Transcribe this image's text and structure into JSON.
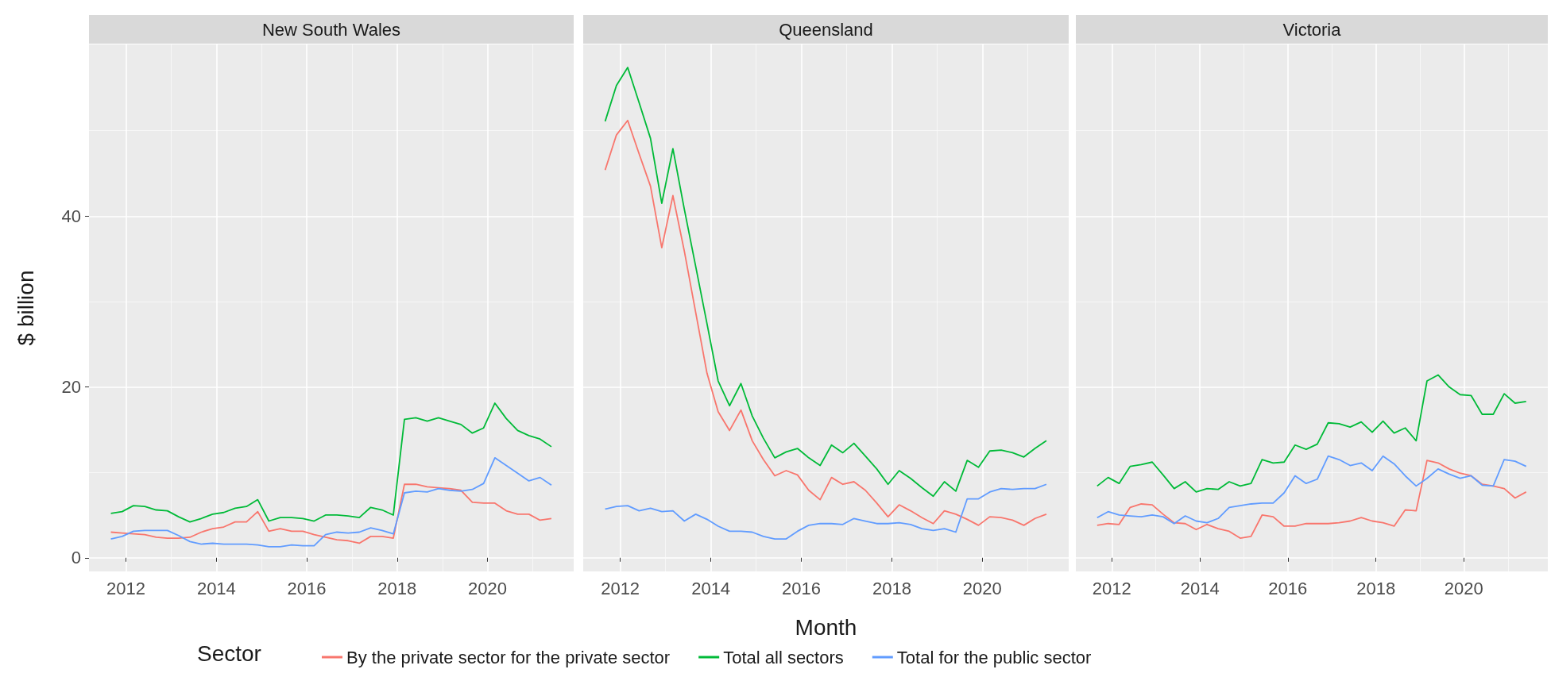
{
  "chart_data": [
    {
      "type": "line",
      "title": "New South Wales",
      "ylabel": "$ billion",
      "grid": true,
      "legend": false,
      "x": [
        "2011-09",
        "2011-12",
        "2012-03",
        "2012-06",
        "2012-09",
        "2012-12",
        "2013-03",
        "2013-06",
        "2013-09",
        "2013-12",
        "2014-03",
        "2014-06",
        "2014-09",
        "2014-12",
        "2015-03",
        "2015-06",
        "2015-09",
        "2015-12",
        "2016-03",
        "2016-06",
        "2016-09",
        "2016-12",
        "2017-03",
        "2017-06",
        "2017-09",
        "2017-12",
        "2018-03",
        "2018-06",
        "2018-09",
        "2018-12",
        "2019-03",
        "2019-06",
        "2019-09",
        "2019-12",
        "2020-03",
        "2020-06",
        "2020-09",
        "2020-12",
        "2021-03",
        "2021-06"
      ],
      "xlim": [
        "2011-03-08",
        "2021-11-28"
      ],
      "xticks": [
        "2012",
        "2014",
        "2016",
        "2018",
        "2020"
      ],
      "ylim": [
        -1.6,
        60.1
      ],
      "yticks": [
        0,
        20,
        40
      ],
      "series": [
        {
          "color": "#f8766d",
          "values": [
            3.0,
            2.9,
            2.8,
            2.7,
            2.4,
            2.3,
            2.3,
            2.4,
            3.0,
            3.4,
            3.6,
            4.2,
            4.2,
            5.4,
            3.1,
            3.4,
            3.1,
            3.1,
            2.7,
            2.4,
            2.1,
            2.0,
            1.7,
            2.5,
            2.5,
            2.3,
            8.6,
            8.6,
            8.3,
            8.2,
            8.1,
            7.9,
            6.5,
            6.4,
            6.4,
            5.5,
            5.1,
            5.1,
            4.4,
            4.6
          ]
        },
        {
          "color": "#00ba38",
          "values": [
            5.2,
            5.4,
            6.1,
            6.0,
            5.6,
            5.5,
            4.8,
            4.2,
            4.6,
            5.1,
            5.3,
            5.8,
            6.0,
            6.8,
            4.3,
            4.7,
            4.7,
            4.6,
            4.3,
            5.0,
            5.0,
            4.9,
            4.7,
            5.9,
            5.6,
            5.0,
            16.2,
            16.4,
            16.0,
            16.4,
            16.0,
            15.6,
            14.6,
            15.2,
            18.1,
            16.3,
            14.9,
            14.3,
            13.9,
            13.0
          ]
        },
        {
          "color": "#619cff",
          "values": [
            2.2,
            2.5,
            3.1,
            3.2,
            3.2,
            3.2,
            2.6,
            1.9,
            1.6,
            1.7,
            1.6,
            1.6,
            1.6,
            1.5,
            1.3,
            1.3,
            1.5,
            1.4,
            1.4,
            2.7,
            3.0,
            2.9,
            3.0,
            3.5,
            3.2,
            2.8,
            7.6,
            7.8,
            7.7,
            8.1,
            7.9,
            7.8,
            8.0,
            8.7,
            11.7,
            10.8,
            9.9,
            9.0,
            9.4,
            8.5
          ]
        }
      ]
    },
    {
      "type": "line",
      "title": "Queensland",
      "xlabel": "Month",
      "legend_title": "Sector",
      "tick_labels": "x",
      "grid": true,
      "legend": "bottom",
      "x": [
        "2011-09",
        "2011-12",
        "2012-03",
        "2012-06",
        "2012-09",
        "2012-12",
        "2013-03",
        "2013-06",
        "2013-09",
        "2013-12",
        "2014-03",
        "2014-06",
        "2014-09",
        "2014-12",
        "2015-03",
        "2015-06",
        "2015-09",
        "2015-12",
        "2016-03",
        "2016-06",
        "2016-09",
        "2016-12",
        "2017-03",
        "2017-06",
        "2017-09",
        "2017-12",
        "2018-03",
        "2018-06",
        "2018-09",
        "2018-12",
        "2019-03",
        "2019-06",
        "2019-09",
        "2019-12",
        "2020-03",
        "2020-06",
        "2020-09",
        "2020-12",
        "2021-03",
        "2021-06"
      ],
      "xlim": [
        "2011-03-08",
        "2021-11-28"
      ],
      "xticks": [
        "2012",
        "2014",
        "2016",
        "2018",
        "2020"
      ],
      "ylim": [
        -1.6,
        60.1
      ],
      "yticks": [
        0,
        20,
        40
      ],
      "series": [
        {
          "name": "By the private sector for the private sector",
          "color": "#f8766d",
          "values": [
            45.4,
            49.5,
            51.2,
            47.3,
            43.5,
            36.3,
            42.4,
            35.9,
            28.7,
            21.6,
            17.1,
            14.9,
            17.3,
            13.7,
            11.5,
            9.6,
            10.2,
            9.7,
            7.9,
            6.8,
            9.4,
            8.6,
            8.9,
            7.9,
            6.4,
            4.8,
            6.2,
            5.5,
            4.7,
            4.0,
            5.5,
            5.1,
            4.5,
            3.8,
            4.8,
            4.7,
            4.4,
            3.8,
            4.6,
            5.1
          ]
        },
        {
          "name": "Total all sectors",
          "color": "#00ba38",
          "values": [
            51.1,
            55.3,
            57.4,
            53.3,
            49.1,
            41.5,
            47.9,
            40.8,
            34.1,
            27.4,
            20.7,
            17.8,
            20.4,
            16.6,
            14.0,
            11.7,
            12.4,
            12.8,
            11.7,
            10.8,
            13.2,
            12.3,
            13.4,
            11.9,
            10.4,
            8.6,
            10.2,
            9.3,
            8.2,
            7.2,
            8.9,
            7.8,
            11.4,
            10.6,
            12.5,
            12.6,
            12.3,
            11.8,
            12.8,
            13.7
          ]
        },
        {
          "name": "Total for the public sector",
          "color": "#619cff",
          "values": [
            5.7,
            6.0,
            6.1,
            5.5,
            5.8,
            5.4,
            5.5,
            4.3,
            5.1,
            4.5,
            3.7,
            3.1,
            3.1,
            3.0,
            2.5,
            2.2,
            2.2,
            3.1,
            3.8,
            4.0,
            4.0,
            3.9,
            4.6,
            4.3,
            4.0,
            4.0,
            4.1,
            3.9,
            3.4,
            3.2,
            3.4,
            3.0,
            6.9,
            6.9,
            7.7,
            8.1,
            8.0,
            8.1,
            8.1,
            8.6
          ]
        }
      ]
    },
    {
      "type": "line",
      "title": "Victoria",
      "tick_labels": "x",
      "grid": true,
      "legend": false,
      "x": [
        "2011-09",
        "2011-12",
        "2012-03",
        "2012-06",
        "2012-09",
        "2012-12",
        "2013-03",
        "2013-06",
        "2013-09",
        "2013-12",
        "2014-03",
        "2014-06",
        "2014-09",
        "2014-12",
        "2015-03",
        "2015-06",
        "2015-09",
        "2015-12",
        "2016-03",
        "2016-06",
        "2016-09",
        "2016-12",
        "2017-03",
        "2017-06",
        "2017-09",
        "2017-12",
        "2018-03",
        "2018-06",
        "2018-09",
        "2018-12",
        "2019-03",
        "2019-06",
        "2019-09",
        "2019-12",
        "2020-03",
        "2020-06",
        "2020-09",
        "2020-12",
        "2021-03",
        "2021-06"
      ],
      "xlim": [
        "2011-03-08",
        "2021-11-28"
      ],
      "xticks": [
        "2012",
        "2014",
        "2016",
        "2018",
        "2020"
      ],
      "ylim": [
        -1.6,
        60.1
      ],
      "yticks": [
        0,
        20,
        40
      ],
      "series": [
        {
          "color": "#f8766d",
          "values": [
            3.8,
            4.0,
            3.9,
            5.9,
            6.3,
            6.2,
            5.1,
            4.1,
            4.0,
            3.3,
            3.9,
            3.4,
            3.1,
            2.3,
            2.5,
            5.0,
            4.8,
            3.7,
            3.7,
            4.0,
            4.0,
            4.0,
            4.1,
            4.3,
            4.7,
            4.3,
            4.1,
            3.7,
            5.6,
            5.5,
            11.4,
            11.1,
            10.4,
            9.9,
            9.6,
            8.6,
            8.4,
            8.1,
            7.0,
            7.7
          ]
        },
        {
          "color": "#00ba38",
          "values": [
            8.4,
            9.4,
            8.7,
            10.7,
            10.9,
            11.2,
            9.7,
            8.1,
            8.9,
            7.7,
            8.1,
            8.0,
            8.9,
            8.4,
            8.7,
            11.5,
            11.1,
            11.2,
            13.2,
            12.7,
            13.3,
            15.8,
            15.7,
            15.3,
            15.9,
            14.7,
            16.0,
            14.6,
            15.2,
            13.7,
            20.7,
            21.4,
            20.0,
            19.1,
            19.0,
            16.8,
            16.8,
            19.2,
            18.1,
            18.3
          ]
        },
        {
          "color": "#619cff",
          "values": [
            4.7,
            5.4,
            5.0,
            4.9,
            4.8,
            5.0,
            4.8,
            4.0,
            4.9,
            4.3,
            4.1,
            4.6,
            5.9,
            6.1,
            6.3,
            6.4,
            6.4,
            7.6,
            9.6,
            8.7,
            9.2,
            11.9,
            11.5,
            10.8,
            11.1,
            10.2,
            11.9,
            11.0,
            9.6,
            8.4,
            9.3,
            10.4,
            9.8,
            9.3,
            9.6,
            8.5,
            8.4,
            11.5,
            11.3,
            10.7
          ]
        }
      ]
    }
  ]
}
